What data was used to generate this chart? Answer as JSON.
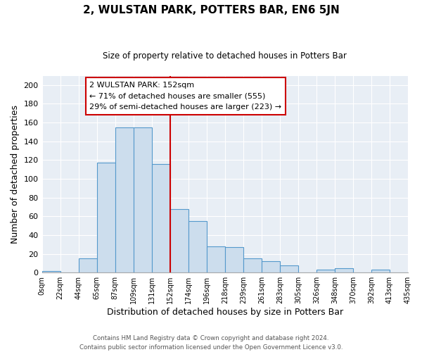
{
  "title": "2, WULSTAN PARK, POTTERS BAR, EN6 5JN",
  "subtitle": "Size of property relative to detached houses in Potters Bar",
  "xlabel": "Distribution of detached houses by size in Potters Bar",
  "ylabel": "Number of detached properties",
  "bin_labels": [
    "0sqm",
    "22sqm",
    "44sqm",
    "65sqm",
    "87sqm",
    "109sqm",
    "131sqm",
    "152sqm",
    "174sqm",
    "196sqm",
    "218sqm",
    "239sqm",
    "261sqm",
    "283sqm",
    "305sqm",
    "326sqm",
    "348sqm",
    "370sqm",
    "392sqm",
    "413sqm",
    "435sqm"
  ],
  "bar_heights": [
    2,
    0,
    15,
    117,
    155,
    155,
    116,
    68,
    55,
    28,
    27,
    15,
    12,
    8,
    0,
    3,
    5,
    0,
    3,
    0
  ],
  "bar_color": "#ccdded",
  "bar_edgecolor": "#5599cc",
  "vline_x_index": 7,
  "vline_color": "#cc0000",
  "annotation_title": "2 WULSTAN PARK: 152sqm",
  "annotation_line1": "← 71% of detached houses are smaller (555)",
  "annotation_line2": "29% of semi-detached houses are larger (223) →",
  "annotation_box_edgecolor": "#cc0000",
  "ylim": [
    0,
    210
  ],
  "yticks": [
    0,
    20,
    40,
    60,
    80,
    100,
    120,
    140,
    160,
    180,
    200
  ],
  "background_color": "#ffffff",
  "plot_bg_color": "#e8eef5",
  "grid_color": "#ffffff",
  "footer_line1": "Contains HM Land Registry data © Crown copyright and database right 2024.",
  "footer_line2": "Contains public sector information licensed under the Open Government Licence v3.0."
}
